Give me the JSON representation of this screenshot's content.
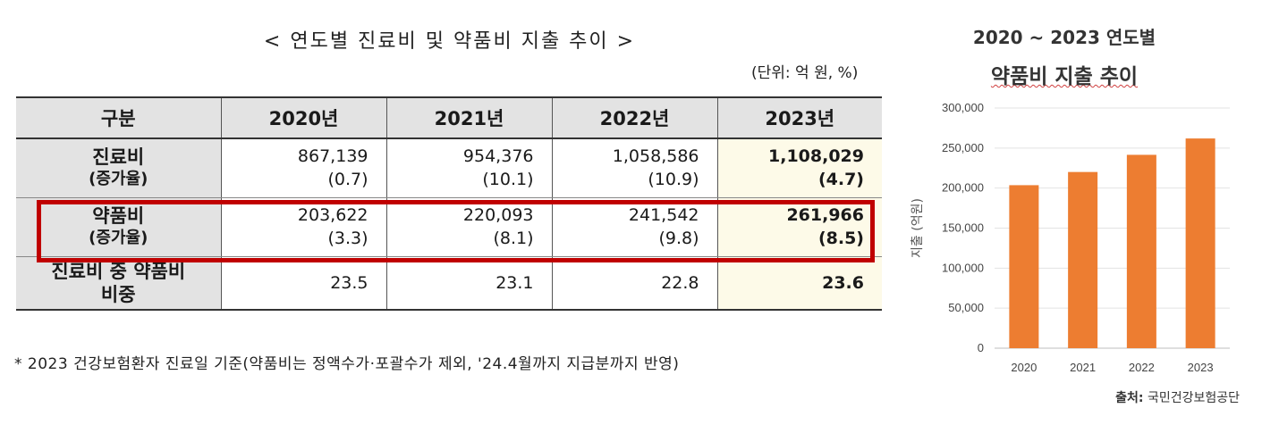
{
  "table": {
    "title": "< 연도별 진료비 및 약품비 지출 추이 >",
    "unit": "(단위: 억 원, %)",
    "headers": [
      "구분",
      "2020년",
      "2021년",
      "2022년",
      "2023년"
    ],
    "rows": [
      {
        "label": "진료비",
        "sub": "(증가율)",
        "values": [
          "867,139",
          "954,376",
          "1,058,586",
          "1,108,029"
        ],
        "rates": [
          "(0.7)",
          "(10.1)",
          "(10.9)",
          "(4.7)"
        ]
      },
      {
        "label": "약품비",
        "sub": "(증가율)",
        "values": [
          "203,622",
          "220,093",
          "241,542",
          "261,966"
        ],
        "rates": [
          "(3.3)",
          "(8.1)",
          "(9.8)",
          "(8.5)"
        ]
      },
      {
        "label1": "진료비 중 약품비",
        "label2": "비중",
        "values": [
          "23.5",
          "23.1",
          "22.8",
          "23.6"
        ]
      }
    ],
    "highlight_color": "#c00000",
    "footnote": "* 2023 건강보험환자 진료일 기준(약품비는 정액수가·포괄수가 제외, '24.4월까지 지급분까지 반영)"
  },
  "chart_title": {
    "line1": "2020 ~ 2023 연도별",
    "line2": "약품비 지출 추이"
  },
  "chart_data": {
    "type": "bar",
    "categories": [
      "2020",
      "2021",
      "2022",
      "2023"
    ],
    "values": [
      203622,
      220093,
      241542,
      261966
    ],
    "ylabel": "지출 (억원)",
    "xlabel": "",
    "ylim": [
      0,
      300000
    ],
    "yticks": [
      0,
      50000,
      100000,
      150000,
      200000,
      250000,
      300000
    ],
    "ytick_labels": [
      "0",
      "50,000",
      "100,000",
      "150,000",
      "200,000",
      "250,000",
      "300,000"
    ],
    "grid": true,
    "bar_color": "#ed7d31"
  },
  "source": {
    "label": "출처:",
    "text": "국민건강보험공단"
  }
}
